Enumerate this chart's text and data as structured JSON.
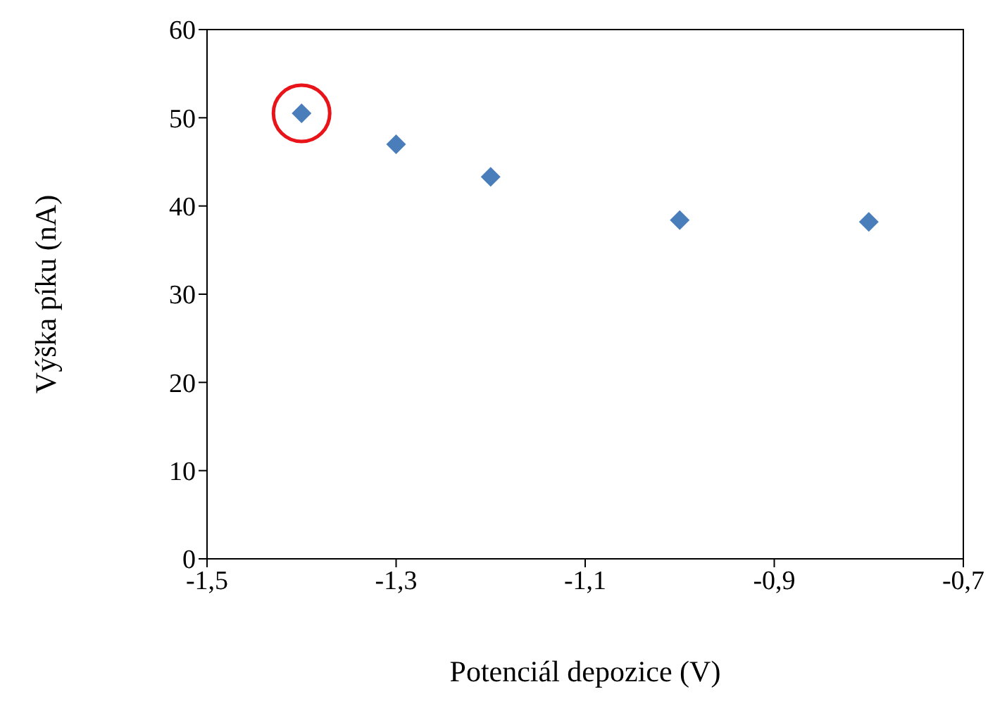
{
  "chart_data": {
    "type": "scatter",
    "xlabel": "Potenciál depozice (V)",
    "ylabel": "Výška píku (nA)",
    "x": [
      -1.4,
      -1.3,
      -1.2,
      -1.0,
      -0.8
    ],
    "series": [
      {
        "color": "#4a7ebb",
        "values": [
          50.5,
          47,
          43.3,
          38.4,
          38.2
        ]
      }
    ],
    "xlim": [
      -1.5,
      -0.7
    ],
    "ylim": [
      0,
      60
    ],
    "xticks": [
      {
        "value": -1.5,
        "label": "-1,5"
      },
      {
        "value": -1.3,
        "label": "-1,3"
      },
      {
        "value": -1.1,
        "label": "-1,1"
      },
      {
        "value": -0.9,
        "label": "-0,9"
      },
      {
        "value": -0.7,
        "label": "-0,7"
      }
    ],
    "yticks": [
      0,
      10,
      20,
      30,
      40,
      50,
      60
    ],
    "grid": false,
    "marker": "diamond"
  }
}
